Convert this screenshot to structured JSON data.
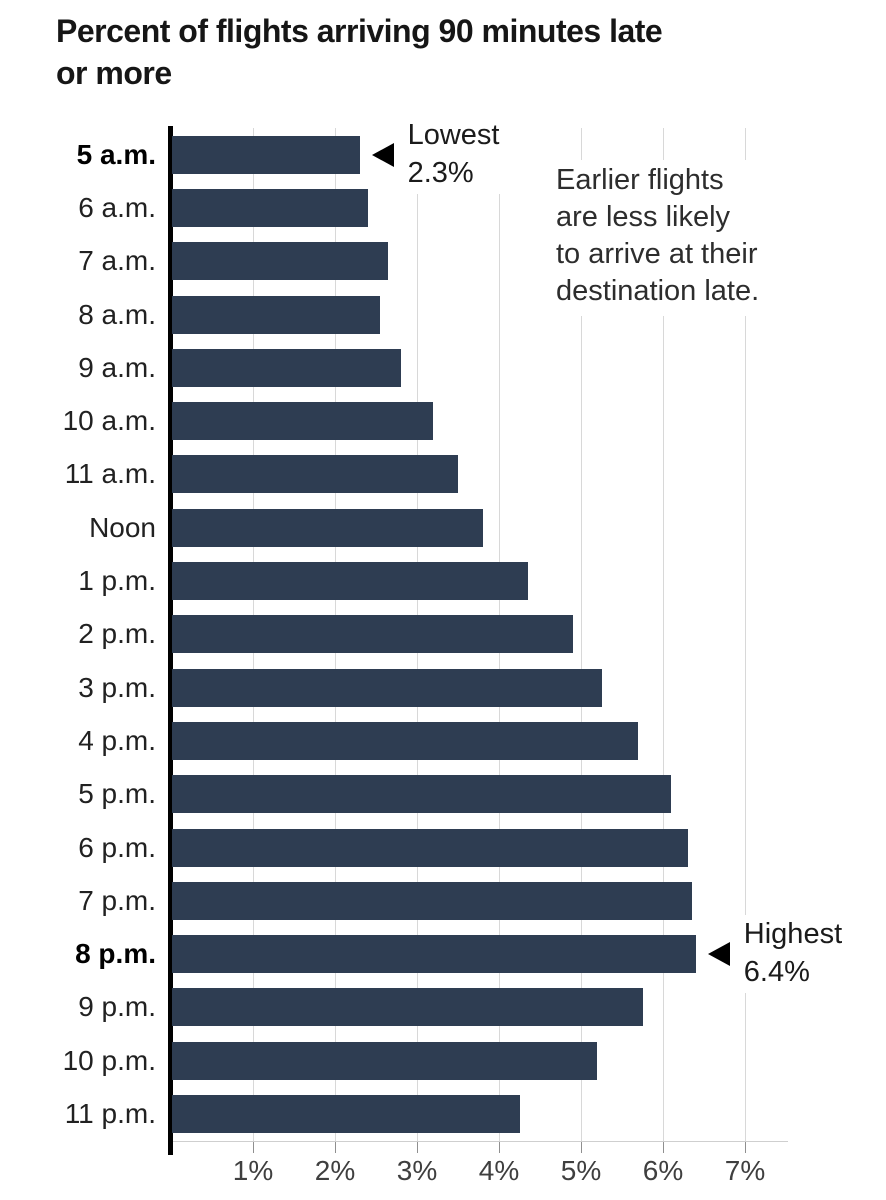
{
  "title_lines": [
    "Percent of flights arriving 90 minutes late",
    "or more"
  ],
  "chart_data": {
    "type": "bar",
    "orientation": "horizontal",
    "title": "Percent of flights arriving 90 minutes late or more",
    "categories": [
      "5 a.m.",
      "6 a.m.",
      "7 a.m.",
      "8 a.m.",
      "9 a.m.",
      "10 a.m.",
      "11 a.m.",
      "Noon",
      "1 p.m.",
      "2 p.m.",
      "3 p.m.",
      "4 p.m.",
      "5 p.m.",
      "6 p.m.",
      "7 p.m.",
      "8 p.m.",
      "9 p.m.",
      "10 p.m.",
      "11 p.m."
    ],
    "values": [
      2.3,
      2.4,
      2.65,
      2.55,
      2.8,
      3.2,
      3.5,
      3.8,
      4.35,
      4.9,
      5.25,
      5.7,
      6.1,
      6.3,
      6.35,
      6.4,
      5.75,
      5.2,
      4.25
    ],
    "bold_categories": [
      "5 a.m.",
      "8 p.m."
    ],
    "x_tick_labels": [
      "1%",
      "2%",
      "3%",
      "4%",
      "5%",
      "6%",
      "7%"
    ],
    "xlim": [
      0,
      7.6
    ],
    "grid": true,
    "legend": false,
    "bar_color": "#2e3d52",
    "annotations": {
      "lowest": {
        "category": "5 a.m.",
        "lines": [
          "Lowest",
          "2.3%"
        ]
      },
      "highest": {
        "category": "8 p.m.",
        "lines": [
          "Highest",
          "6.4%"
        ]
      },
      "note_lines": [
        "Earlier flights",
        "are less likely",
        "to arrive at their",
        "destination late."
      ]
    }
  },
  "colors": {
    "bar": "#2e3d52",
    "gridline": "#d8d8d8",
    "axis": "#000000",
    "title_text": "#161616",
    "label_text": "#212121",
    "tick_text": "#3f3f3f"
  }
}
